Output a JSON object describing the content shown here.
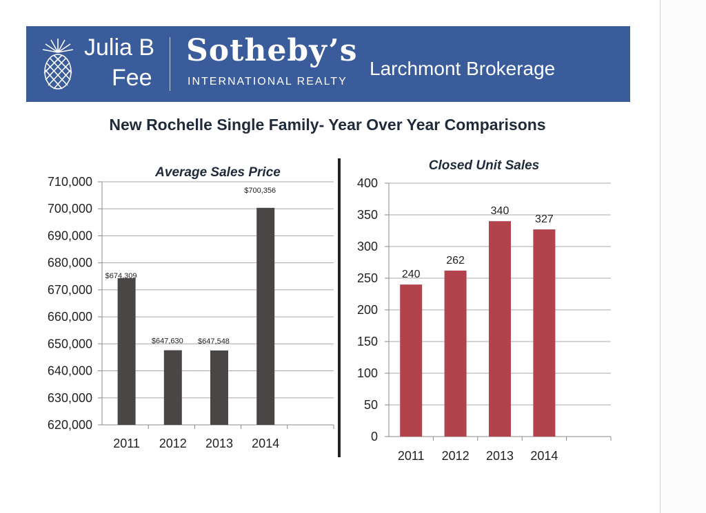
{
  "header": {
    "logo_line1": "Julia B",
    "logo_line2": "Fee",
    "brand": "Sotheby’s",
    "brand_sub": "INTERNATIONAL REALTY",
    "brokerage": "Larchmont Brokerage",
    "banner_color": "#3a5c9a"
  },
  "page_title": "New Rochelle  Single Family- Year Over Year Comparisons",
  "chart_data": [
    {
      "type": "bar",
      "title": "Average Sales Price",
      "categories": [
        "2011",
        "2012",
        "2013",
        "2014"
      ],
      "values": [
        674309,
        647630,
        647548,
        700356
      ],
      "data_labels": [
        "$674,309",
        "$647,630",
        "$647,548",
        "$700,356"
      ],
      "ylim": [
        620000,
        710000
      ],
      "yticks": [
        620000,
        630000,
        640000,
        650000,
        660000,
        670000,
        680000,
        690000,
        700000,
        710000
      ],
      "ytick_labels": [
        "620,000",
        "630,000",
        "640,000",
        "650,000",
        "660,000",
        "670,000",
        "680,000",
        "690,000",
        "700,000",
        "710,000"
      ],
      "grid": true,
      "color": "#4a4646"
    },
    {
      "type": "bar",
      "title": "Closed Unit Sales",
      "categories": [
        "2011",
        "2012",
        "2013",
        "2014"
      ],
      "values": [
        240,
        262,
        340,
        327
      ],
      "data_labels": [
        "240",
        "262",
        "340",
        "327"
      ],
      "ylim": [
        0,
        400
      ],
      "yticks": [
        0,
        50,
        100,
        150,
        200,
        250,
        300,
        350,
        400
      ],
      "ytick_labels": [
        "0",
        "50",
        "100",
        "150",
        "200",
        "250",
        "300",
        "350",
        "400"
      ],
      "grid": true,
      "color": "#b2434c"
    }
  ]
}
